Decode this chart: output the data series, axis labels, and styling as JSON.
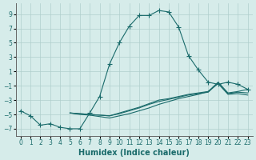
{
  "title": "",
  "xlabel": "Humidex (Indice chaleur)",
  "ylabel": "",
  "background_color": "#d6ecea",
  "grid_color": "#b0cfcc",
  "line_color": "#1a6b6b",
  "xlim": [
    -0.5,
    23.5
  ],
  "ylim": [
    -8,
    10.5
  ],
  "xticks": [
    0,
    1,
    2,
    3,
    4,
    5,
    6,
    7,
    8,
    9,
    10,
    11,
    12,
    13,
    14,
    15,
    16,
    17,
    18,
    19,
    20,
    21,
    22,
    23
  ],
  "yticks": [
    -7,
    -5,
    -3,
    -1,
    1,
    3,
    5,
    7,
    9
  ],
  "series": [
    {
      "x": [
        0,
        1,
        2,
        3,
        4,
        5,
        6,
        7,
        8,
        9,
        10,
        11,
        12,
        13,
        14,
        15,
        16,
        17,
        18,
        19,
        20,
        21,
        22,
        23
      ],
      "y": [
        -4.5,
        -5.2,
        -6.5,
        -6.3,
        -6.8,
        -7.0,
        -7.0,
        -4.8,
        -2.5,
        2.0,
        5.0,
        7.3,
        8.8,
        8.8,
        9.5,
        9.3,
        7.2,
        3.2,
        1.2,
        -0.5,
        -0.8,
        -0.5,
        -0.8,
        -1.5
      ],
      "use_marker": true
    },
    {
      "x": [
        5,
        6,
        7,
        8,
        9,
        10,
        11,
        12,
        13,
        14,
        15,
        16,
        17,
        18,
        19,
        20,
        21,
        22,
        23
      ],
      "y": [
        -4.8,
        -4.9,
        -5.0,
        -5.1,
        -5.2,
        -4.8,
        -4.4,
        -4.0,
        -3.5,
        -3.0,
        -2.8,
        -2.5,
        -2.2,
        -2.0,
        -1.8,
        -0.5,
        -2.0,
        -1.8,
        -1.5
      ],
      "use_marker": false
    },
    {
      "x": [
        5,
        6,
        7,
        8,
        9,
        10,
        11,
        12,
        13,
        14,
        15,
        16,
        17,
        18,
        19,
        20,
        21,
        22,
        23
      ],
      "y": [
        -4.8,
        -4.9,
        -5.0,
        -5.1,
        -5.2,
        -4.9,
        -4.5,
        -4.1,
        -3.6,
        -3.2,
        -2.9,
        -2.6,
        -2.3,
        -2.1,
        -1.9,
        -0.6,
        -2.1,
        -1.9,
        -2.0
      ],
      "use_marker": false
    },
    {
      "x": [
        5,
        6,
        7,
        8,
        9,
        10,
        11,
        12,
        13,
        14,
        15,
        16,
        17,
        18,
        19,
        20,
        21,
        22,
        23
      ],
      "y": [
        -4.8,
        -5.0,
        -5.1,
        -5.3,
        -5.5,
        -5.2,
        -4.9,
        -4.5,
        -4.1,
        -3.6,
        -3.2,
        -2.8,
        -2.5,
        -2.2,
        -1.8,
        -0.7,
        -2.2,
        -2.1,
        -2.3
      ],
      "use_marker": false
    }
  ]
}
